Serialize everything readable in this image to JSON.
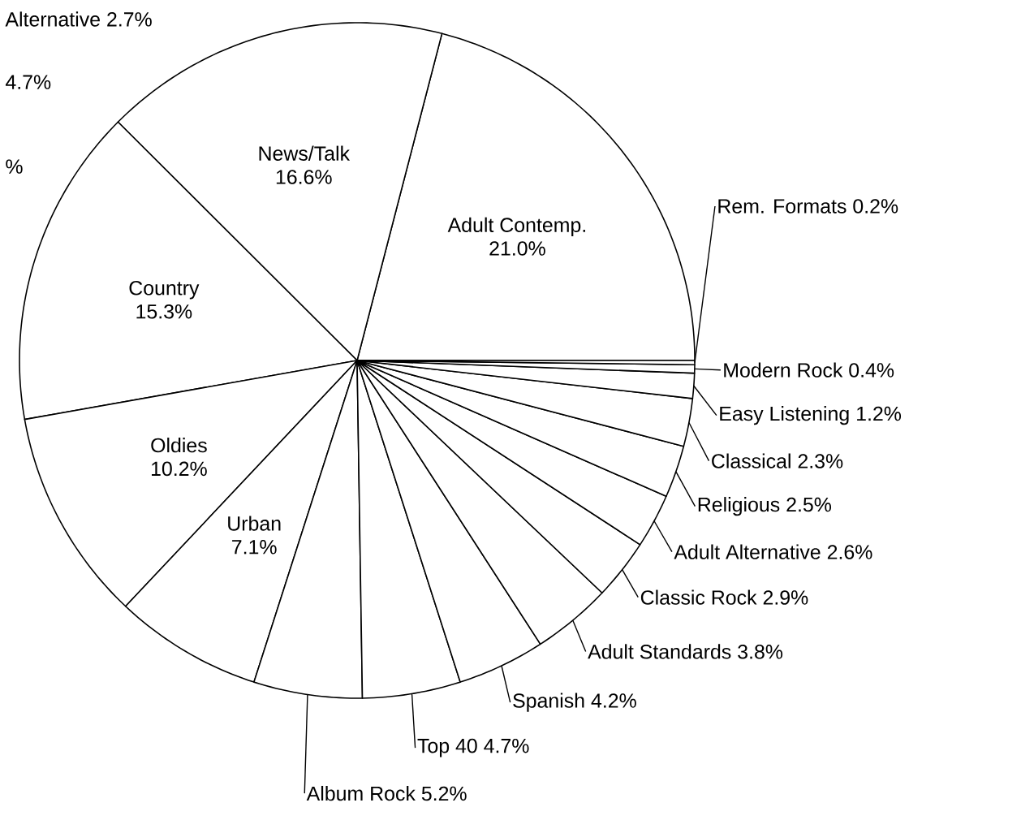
{
  "chart_data": {
    "type": "pie",
    "categories": [
      "Adult Contemp.",
      "News/Talk",
      "Country",
      "Oldies",
      "Urban",
      "Album Rock",
      "Top 40",
      "Spanish",
      "Adult Standards",
      "Classic Rock",
      "Adult Alternative",
      "Religious",
      "Classical",
      "Easy Listening",
      "Modern Rock",
      "Rem. Formats"
    ],
    "values": [
      21.0,
      16.6,
      15.3,
      10.2,
      7.1,
      5.2,
      4.7,
      4.2,
      3.8,
      2.9,
      2.6,
      2.5,
      2.3,
      1.2,
      0.4,
      0.2
    ],
    "value_labels": [
      "21.0%",
      "16.6%",
      "15.3%",
      "10.2%",
      "7.1%",
      "5.2%",
      "4.7%",
      "4.2%",
      "3.8%",
      "2.9%",
      "2.6%",
      "2.5%",
      "2.3%",
      "1.2%",
      "0.4%",
      "0.2%"
    ],
    "colors": [
      "#ffffff",
      "#ffffff",
      "#ffffff",
      "#ffffff",
      "#ffffff",
      "#ffffff",
      "#ffffff",
      "#ffffff",
      "#ffffff",
      "#ffffff",
      "#ffffff",
      "#ffffff",
      "#ffffff",
      "#ffffff",
      "#ffffff",
      "#ffffff"
    ],
    "annotations": [
      "Alternative 2.7%",
      "4.7%",
      "%"
    ]
  }
}
